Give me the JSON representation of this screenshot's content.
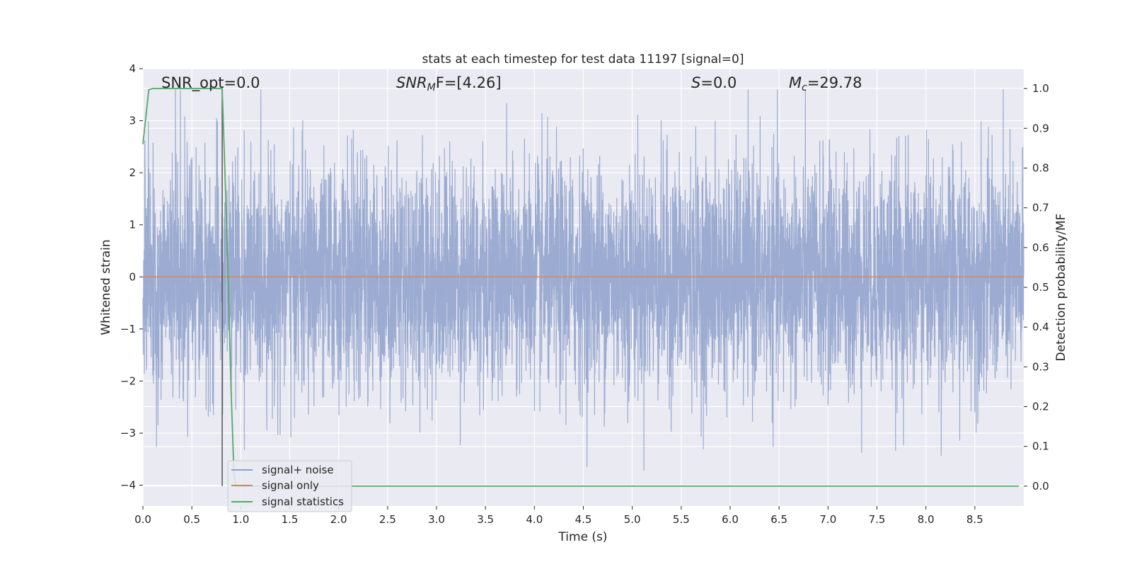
{
  "chart_data": {
    "type": "line",
    "title": "stats at each timestep for test data 11197 [signal=0]",
    "xlabel": "Time (s)",
    "ylabel": "Whitened strain",
    "y2label": "Detection probability/MF",
    "xlim": [
      0.0,
      9.0
    ],
    "ylim": [
      -4.4,
      4.0
    ],
    "y2lim": [
      -0.05,
      1.05
    ],
    "x_ticks": [
      "0.0",
      "0.5",
      "1.0",
      "1.5",
      "2.0",
      "2.5",
      "3.0",
      "3.5",
      "4.0",
      "4.5",
      "5.0",
      "5.5",
      "6.0",
      "6.5",
      "7.0",
      "7.5",
      "8.0",
      "8.5"
    ],
    "y_ticks": [
      "−4",
      "−3",
      "−2",
      "−1",
      "0",
      "1",
      "2",
      "3",
      "4"
    ],
    "y2_ticks": [
      "0.0",
      "0.1",
      "0.2",
      "0.3",
      "0.4",
      "0.5",
      "0.6",
      "0.7",
      "0.8",
      "0.9",
      "1.0"
    ],
    "grid": true,
    "legend_position": "lower-left",
    "annotations": {
      "snr_opt": "SNR_opt=0.0",
      "snr_mf_main": "SNR",
      "snr_mf_sub": "M",
      "snr_mf_tail": "F=[4.26]",
      "s_main": "S",
      "s_tail": "=0.0",
      "mc_main": "M",
      "mc_sub": "c",
      "mc_tail": "=29.78"
    },
    "vertical_marker_x": 0.81,
    "series": [
      {
        "name": "signal+ noise",
        "color": "#8da0cb",
        "axis": "left",
        "x_range": [
          0.0,
          9.0
        ],
        "approx_amplitude_std": 1.1,
        "peak_max": 3.6,
        "peak_min": -3.95
      },
      {
        "name": "signal only",
        "color": "#dd8452",
        "axis": "left",
        "x": [
          0.0,
          9.0
        ],
        "y": [
          0.0,
          0.0
        ]
      },
      {
        "name": "signal statistics",
        "color": "#55a868",
        "axis": "right",
        "x": [
          0.0,
          0.06,
          0.1,
          0.2,
          0.4,
          0.6,
          0.8,
          0.81,
          0.85,
          0.9,
          0.93,
          0.95,
          1.0,
          2.0,
          4.0,
          6.0,
          8.0,
          8.95
        ],
        "y": [
          0.86,
          0.997,
          1.0,
          1.0,
          1.0,
          1.0,
          1.0,
          1.0,
          0.7,
          0.25,
          0.03,
          0.0,
          0.0,
          0.0,
          0.0,
          0.0,
          0.0,
          0.0
        ]
      }
    ]
  }
}
